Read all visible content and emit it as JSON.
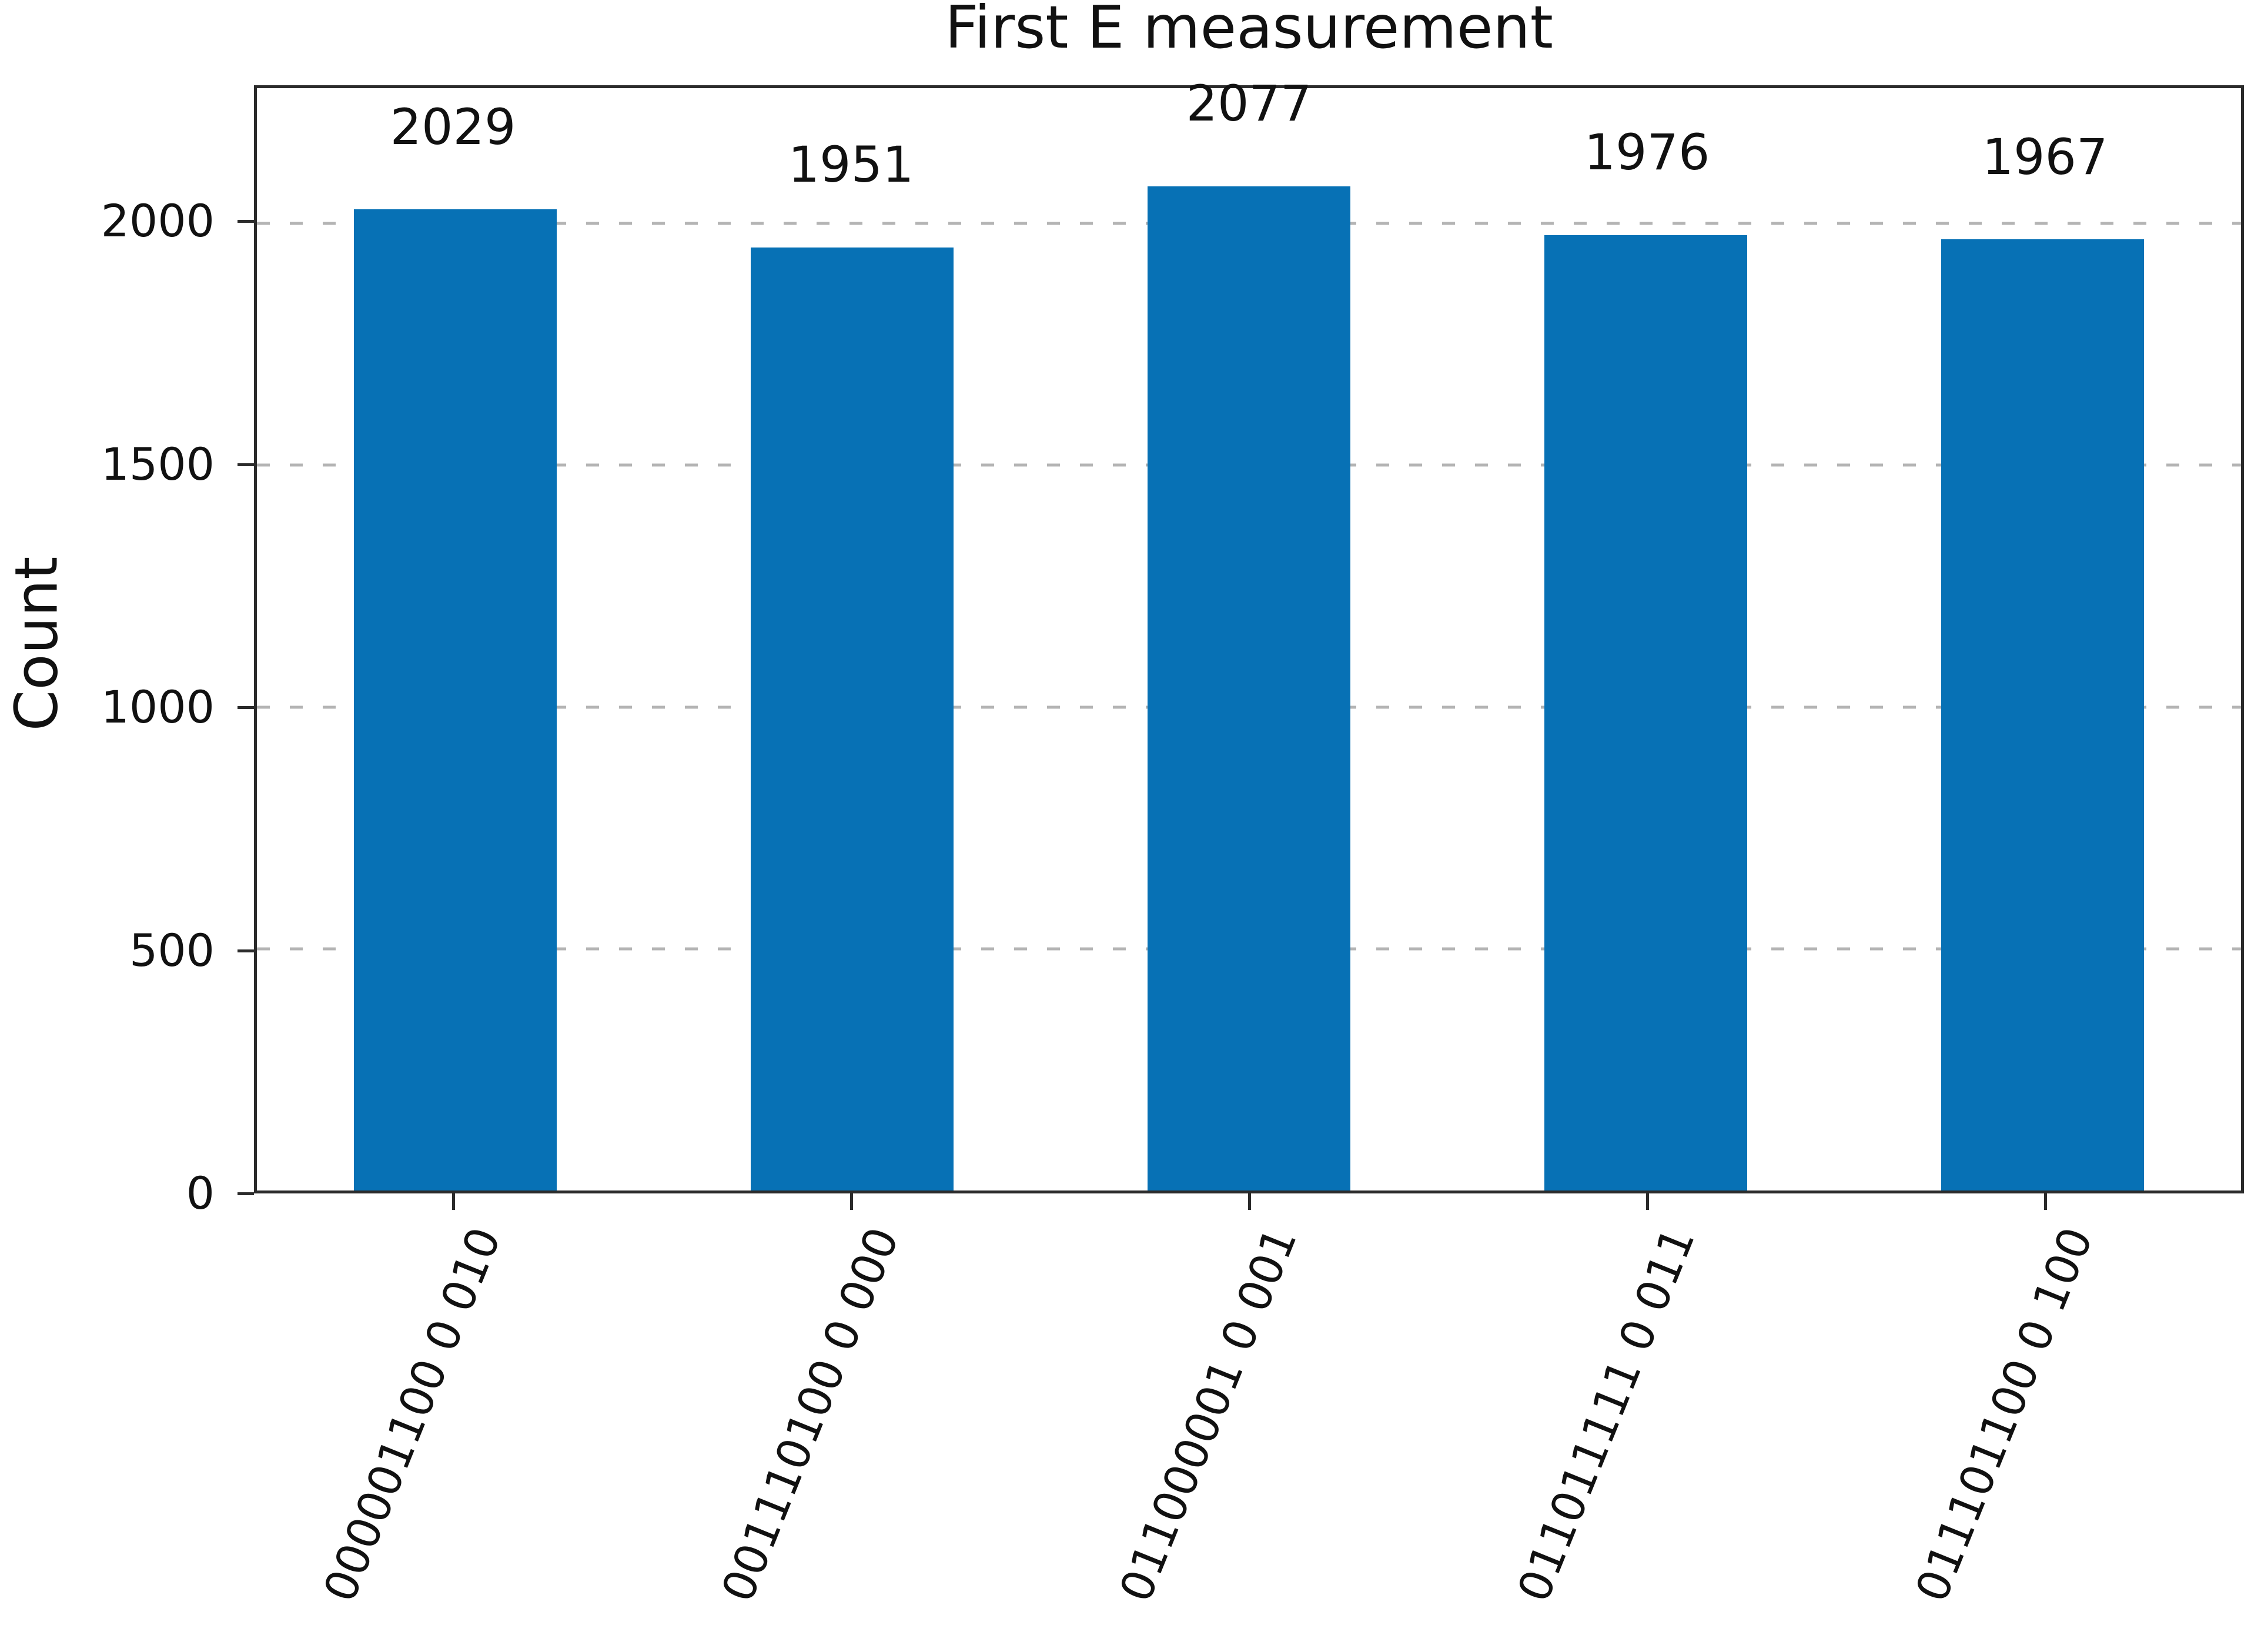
{
  "title": "First E measurement",
  "chart_data": {
    "type": "bar",
    "title": "First E measurement",
    "xlabel": "",
    "ylabel": "Count",
    "categories": [
      "000001100 0 010",
      "001110100 0 000",
      "011000001 0 001",
      "011011111 0 011",
      "011101100 0 100"
    ],
    "values": [
      2029,
      1951,
      2077,
      1976,
      1967
    ],
    "bar_labels": [
      "2029",
      "1951",
      "2077",
      "1976",
      "1967"
    ],
    "yticks": [
      0,
      500,
      1000,
      1500,
      2000
    ],
    "ylim": [
      0,
      2280
    ],
    "grid": "dashed-horizontal",
    "legend": "none",
    "xtick_rotation_deg": 68,
    "colors": {
      "bar": "#0771b5",
      "grid": "#b4b4b4",
      "spine": "#2b2b2b",
      "text": "#111111",
      "background": "#ffffff"
    }
  }
}
